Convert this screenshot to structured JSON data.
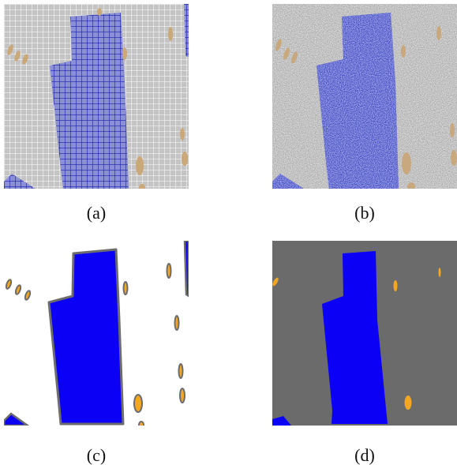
{
  "captions": {
    "a": "(a)",
    "b": "(b)",
    "c": "(c)",
    "d": "(d)"
  },
  "colors": {
    "building_blue": "#0b00f5",
    "grid_bg": "#c4c4c4",
    "grid_line_gray": "#ffffff",
    "grid_line_blue": "#1a20a8",
    "car_tan": "#caa878",
    "noise_bg": "#b9b9b9",
    "noise_blue": "#4a55c8",
    "outline_gray": "#6d6d6d",
    "car_orange": "#f5a623",
    "clutter_gray": "#6b6b6b",
    "white": "#ffffff"
  }
}
